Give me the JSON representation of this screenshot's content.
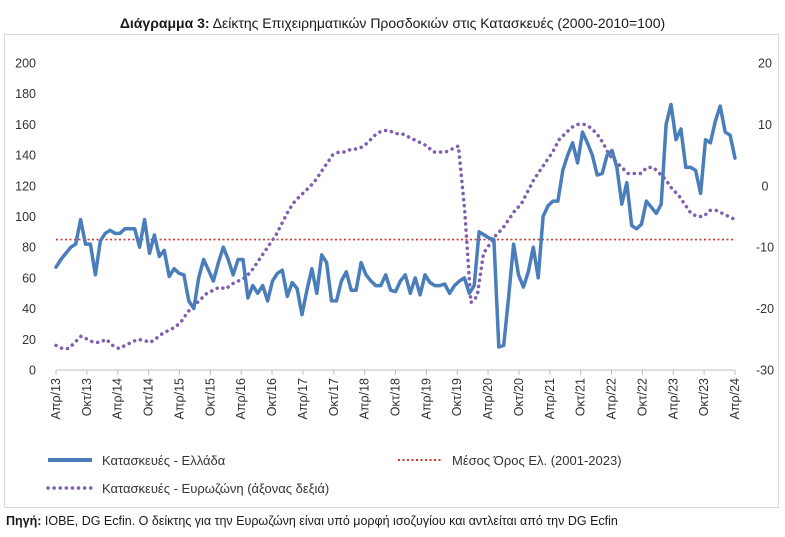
{
  "title": {
    "bold": "Διάγραμμα 3:",
    "text": " Δείκτης Επιχειρηματικών Προσδοκιών στις Κατασκευές (2000-2010=100)"
  },
  "source": {
    "bold": "Πηγή:",
    "text": " ΙΟΒΕ, DG Ecfin. Ο δείκτης για την Ευρωζώνη είναι υπό μορφή ισοζυγίου και αντλείται από την DG Ecfin"
  },
  "colors": {
    "greece": "#4a7ebb",
    "eurozone": "#7f5fae",
    "average": "#d9342b",
    "axis": "#bfbfbf"
  },
  "chart_data": {
    "type": "line",
    "x_labels": [
      "Απρ/13",
      "Οκτ/13",
      "Απρ/14",
      "Οκτ/14",
      "Απρ/15",
      "Οκτ/15",
      "Απρ/16",
      "Οκτ/16",
      "Απρ/17",
      "Οκτ/17",
      "Απρ/18",
      "Οκτ/18",
      "Απρ/19",
      "Οκτ/19",
      "Απρ/20",
      "Οκτ/20",
      "Απρ/21",
      "Οκτ/21",
      "Απρ/22",
      "Οκτ/22",
      "Απρ/23",
      "Οκτ/23",
      "Απρ/24"
    ],
    "y_left": {
      "min": 0,
      "max": 200,
      "ticks": [
        "0",
        "20",
        "40",
        "60",
        "80",
        "100",
        "120",
        "140",
        "160",
        "180",
        "200"
      ]
    },
    "y_right": {
      "min": -30,
      "max": 20,
      "ticks": [
        "-30",
        "-20",
        "-10",
        "0",
        "10",
        "20"
      ]
    },
    "series": [
      {
        "name": "Κατασκευές  - Ελλάδα",
        "axis": "left",
        "style": "solid",
        "values": [
          67,
          72,
          76,
          80,
          82,
          98,
          82,
          82,
          62,
          84,
          89,
          91,
          89,
          89,
          92,
          92,
          92,
          80,
          98,
          76,
          88,
          74,
          78,
          61,
          66,
          63,
          62,
          45,
          40,
          60,
          72,
          65,
          58,
          70,
          80,
          72,
          62,
          72,
          72,
          47,
          55,
          50,
          55,
          45,
          58,
          63,
          65,
          48,
          57,
          53,
          36,
          52,
          66,
          50,
          75,
          70,
          45,
          45,
          58,
          64,
          52,
          52,
          70,
          62,
          58,
          55,
          55,
          62,
          52,
          51,
          58,
          62,
          50,
          60,
          49,
          62,
          57,
          55,
          55,
          56,
          50,
          55,
          58,
          60,
          50,
          55,
          90,
          88,
          86,
          85,
          15,
          16,
          48,
          82,
          62,
          54,
          64,
          80,
          60,
          100,
          107,
          110,
          110,
          130,
          140,
          148,
          135,
          155,
          148,
          140,
          127,
          128,
          140,
          143,
          132,
          108,
          122,
          94,
          92,
          95,
          110,
          106,
          102,
          108,
          160,
          173,
          150,
          157,
          132,
          132,
          130,
          115,
          150,
          148,
          162,
          172,
          155,
          153,
          138
        ]
      },
      {
        "name": "Κατασκευές - Ευρωζώνη (άξονας δεξιά)",
        "axis": "right",
        "style": "dotted",
        "values": [
          -26,
          -26.5,
          -26.5,
          -25.5,
          -24.5,
          -25,
          -25.5,
          -25.5,
          -25,
          -26,
          -26.5,
          -26,
          -25.5,
          -25,
          -25.2,
          -25.5,
          -24.8,
          -24,
          -23.5,
          -23,
          -22,
          -20.5,
          -19.5,
          -18.5,
          -17.5,
          -17,
          -16.5,
          -16.8,
          -16,
          -15.5,
          -15,
          -14,
          -12.5,
          -11,
          -9.5,
          -8,
          -6,
          -4,
          -2.5,
          -1.5,
          -0.5,
          0.5,
          2,
          3.5,
          5,
          5.5,
          5.5,
          6,
          6,
          6.5,
          7.5,
          8.5,
          9,
          9,
          8.5,
          8.5,
          8,
          7.5,
          7,
          6.5,
          5.5,
          5.5,
          5.5,
          6,
          6.5,
          -4,
          -19,
          -18,
          -11,
          -9.5,
          -8,
          -7,
          -5.5,
          -4,
          -3,
          -1,
          1,
          2.5,
          4,
          5.5,
          7.5,
          8.5,
          9.5,
          10,
          10,
          9.5,
          8.5,
          7,
          5,
          4,
          3,
          2,
          2,
          2,
          3,
          3,
          2,
          1,
          -0.5,
          -1.5,
          -3,
          -4.5,
          -5,
          -5,
          -4,
          -4,
          -4.5,
          -5,
          -5.5
        ]
      },
      {
        "name": "Μέσος Όρος Ελ. (2001-2023)",
        "axis": "left",
        "style": "dotted",
        "values": [
          85
        ]
      }
    ]
  }
}
